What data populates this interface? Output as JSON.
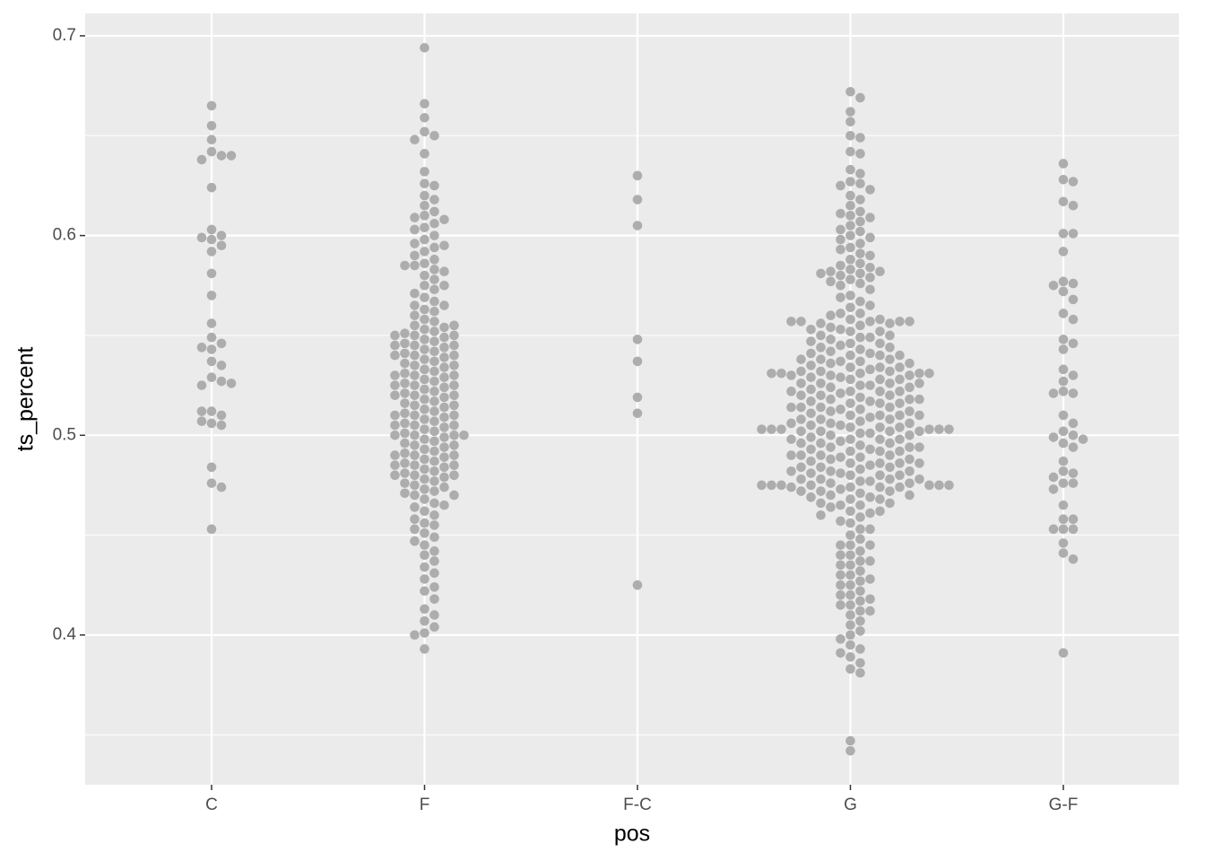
{
  "chart_data": {
    "type": "beeswarm",
    "x_label": "pos",
    "y_label": "ts_percent",
    "categories": [
      "C",
      "F",
      "F-C",
      "G",
      "G-F"
    ],
    "color": "#adadad",
    "ylim": [
      0.325,
      0.7112
    ],
    "yticks": [
      0.4,
      0.5,
      0.6,
      0.7
    ],
    "yminor": [
      0.35,
      0.45,
      0.55,
      0.65
    ],
    "grid": true,
    "values": [
      [
        0.665,
        0.655,
        0.648,
        0.642,
        0.64,
        0.638,
        0.64,
        0.624,
        0.603,
        0.6,
        0.598,
        0.599,
        0.595,
        0.592,
        0.581,
        0.57,
        0.556,
        0.549,
        0.546,
        0.543,
        0.544,
        0.537,
        0.535,
        0.529,
        0.527,
        0.525,
        0.526,
        0.512,
        0.51,
        0.512,
        0.506,
        0.505,
        0.507,
        0.484,
        0.476,
        0.474,
        0.453
      ],
      [
        0.694,
        0.666,
        0.659,
        0.652,
        0.65,
        0.648,
        0.641,
        0.632,
        0.626,
        0.625,
        0.62,
        0.618,
        0.615,
        0.612,
        0.61,
        0.609,
        0.608,
        0.606,
        0.604,
        0.603,
        0.6,
        0.598,
        0.596,
        0.594,
        0.592,
        0.59,
        0.588,
        0.586,
        0.585,
        0.583,
        0.582,
        0.58,
        0.578,
        0.575,
        0.573,
        0.571,
        0.569,
        0.567,
        0.565,
        0.563,
        0.562,
        0.56,
        0.558,
        0.557,
        0.555,
        0.554,
        0.553,
        0.552,
        0.551,
        0.55,
        0.549,
        0.548,
        0.547,
        0.546,
        0.545,
        0.544,
        0.543,
        0.542,
        0.541,
        0.54,
        0.539,
        0.538,
        0.537,
        0.536,
        0.535,
        0.534,
        0.533,
        0.532,
        0.531,
        0.53,
        0.529,
        0.528,
        0.527,
        0.526,
        0.525,
        0.524,
        0.523,
        0.522,
        0.521,
        0.52,
        0.519,
        0.518,
        0.517,
        0.516,
        0.515,
        0.514,
        0.513,
        0.512,
        0.511,
        0.51,
        0.509,
        0.508,
        0.507,
        0.506,
        0.505,
        0.504,
        0.503,
        0.502,
        0.501,
        0.5,
        0.5,
        0.499,
        0.498,
        0.497,
        0.496,
        0.495,
        0.494,
        0.493,
        0.492,
        0.491,
        0.49,
        0.489,
        0.488,
        0.487,
        0.486,
        0.485,
        0.484,
        0.483,
        0.482,
        0.481,
        0.48,
        0.479,
        0.478,
        0.477,
        0.476,
        0.475,
        0.474,
        0.473,
        0.472,
        0.471,
        0.47,
        0.468,
        0.466,
        0.464,
        0.462,
        0.46,
        0.458,
        0.456,
        0.455,
        0.453,
        0.451,
        0.449,
        0.447,
        0.445,
        0.442,
        0.44,
        0.437,
        0.434,
        0.431,
        0.428,
        0.424,
        0.422,
        0.418,
        0.413,
        0.41,
        0.407,
        0.404,
        0.401,
        0.4,
        0.393,
        0.55,
        0.545,
        0.54,
        0.535,
        0.53,
        0.525,
        0.52,
        0.515,
        0.51,
        0.505,
        0.5,
        0.495,
        0.49,
        0.485,
        0.48,
        0.55,
        0.54,
        0.53,
        0.52,
        0.51,
        0.5,
        0.49,
        0.48,
        0.47,
        0.545,
        0.525,
        0.505,
        0.485,
        0.465,
        0.555,
        0.575,
        0.595,
        0.585,
        0.565
      ],
      [
        0.63,
        0.618,
        0.605,
        0.548,
        0.537,
        0.519,
        0.511,
        0.425
      ],
      [
        0.672,
        0.669,
        0.662,
        0.657,
        0.65,
        0.649,
        0.642,
        0.641,
        0.633,
        0.631,
        0.627,
        0.626,
        0.625,
        0.623,
        0.62,
        0.618,
        0.615,
        0.612,
        0.611,
        0.61,
        0.609,
        0.607,
        0.605,
        0.603,
        0.602,
        0.6,
        0.599,
        0.598,
        0.596,
        0.594,
        0.593,
        0.591,
        0.59,
        0.588,
        0.586,
        0.585,
        0.584,
        0.583,
        0.582,
        0.582,
        0.581,
        0.581,
        0.58,
        0.579,
        0.578,
        0.577,
        0.576,
        0.575,
        0.57,
        0.567,
        0.564,
        0.561,
        0.558,
        0.555,
        0.552,
        0.549,
        0.546,
        0.543,
        0.54,
        0.537,
        0.534,
        0.531,
        0.528,
        0.525,
        0.522,
        0.519,
        0.516,
        0.513,
        0.51,
        0.507,
        0.504,
        0.501,
        0.498,
        0.495,
        0.492,
        0.489,
        0.486,
        0.483,
        0.48,
        0.477,
        0.474,
        0.471,
        0.468,
        0.465,
        0.462,
        0.459,
        0.456,
        0.453,
        0.45,
        0.573,
        0.569,
        0.565,
        0.561,
        0.557,
        0.553,
        0.549,
        0.545,
        0.541,
        0.537,
        0.533,
        0.529,
        0.525,
        0.521,
        0.517,
        0.513,
        0.509,
        0.505,
        0.501,
        0.497,
        0.493,
        0.489,
        0.485,
        0.481,
        0.477,
        0.473,
        0.469,
        0.465,
        0.461,
        0.457,
        0.453,
        0.56,
        0.558,
        0.556,
        0.554,
        0.552,
        0.55,
        0.548,
        0.546,
        0.544,
        0.542,
        0.54,
        0.538,
        0.536,
        0.534,
        0.532,
        0.53,
        0.528,
        0.526,
        0.524,
        0.522,
        0.52,
        0.518,
        0.516,
        0.514,
        0.512,
        0.51,
        0.508,
        0.506,
        0.504,
        0.502,
        0.5,
        0.498,
        0.496,
        0.494,
        0.492,
        0.49,
        0.488,
        0.486,
        0.484,
        0.482,
        0.48,
        0.478,
        0.476,
        0.474,
        0.472,
        0.47,
        0.468,
        0.466,
        0.464,
        0.462,
        0.46,
        0.556,
        0.553,
        0.55,
        0.547,
        0.544,
        0.541,
        0.538,
        0.535,
        0.532,
        0.529,
        0.526,
        0.523,
        0.52,
        0.517,
        0.514,
        0.511,
        0.508,
        0.505,
        0.502,
        0.499,
        0.496,
        0.493,
        0.49,
        0.487,
        0.484,
        0.481,
        0.478,
        0.475,
        0.472,
        0.469,
        0.466,
        0.54,
        0.538,
        0.536,
        0.534,
        0.532,
        0.53,
        0.528,
        0.526,
        0.524,
        0.522,
        0.52,
        0.518,
        0.516,
        0.514,
        0.512,
        0.51,
        0.508,
        0.506,
        0.504,
        0.502,
        0.5,
        0.498,
        0.496,
        0.494,
        0.492,
        0.49,
        0.488,
        0.486,
        0.484,
        0.482,
        0.48,
        0.478,
        0.476,
        0.474,
        0.472,
        0.47,
        0.53,
        0.526,
        0.522,
        0.518,
        0.514,
        0.51,
        0.506,
        0.502,
        0.498,
        0.494,
        0.49,
        0.486,
        0.482,
        0.478,
        0.474,
        0.503,
        0.503,
        0.503,
        0.503,
        0.503,
        0.503,
        0.475,
        0.475,
        0.475,
        0.475,
        0.475,
        0.475,
        0.557,
        0.557,
        0.557,
        0.557,
        0.531,
        0.531,
        0.531,
        0.531,
        0.448,
        0.445,
        0.442,
        0.44,
        0.437,
        0.435,
        0.432,
        0.43,
        0.427,
        0.425,
        0.422,
        0.42,
        0.417,
        0.415,
        0.412,
        0.41,
        0.407,
        0.405,
        0.402,
        0.4,
        0.398,
        0.395,
        0.393,
        0.391,
        0.389,
        0.386,
        0.383,
        0.381,
        0.347,
        0.342,
        0.445,
        0.44,
        0.435,
        0.43,
        0.425,
        0.42,
        0.415,
        0.412,
        0.445,
        0.437,
        0.428,
        0.418
      ],
      [
        0.636,
        0.628,
        0.627,
        0.617,
        0.615,
        0.601,
        0.601,
        0.592,
        0.577,
        0.576,
        0.575,
        0.572,
        0.568,
        0.561,
        0.558,
        0.548,
        0.546,
        0.543,
        0.533,
        0.53,
        0.527,
        0.522,
        0.521,
        0.521,
        0.51,
        0.506,
        0.502,
        0.5,
        0.499,
        0.498,
        0.496,
        0.494,
        0.487,
        0.482,
        0.481,
        0.479,
        0.476,
        0.476,
        0.473,
        0.465,
        0.458,
        0.458,
        0.453,
        0.453,
        0.453,
        0.446,
        0.441,
        0.438,
        0.391
      ]
    ]
  }
}
